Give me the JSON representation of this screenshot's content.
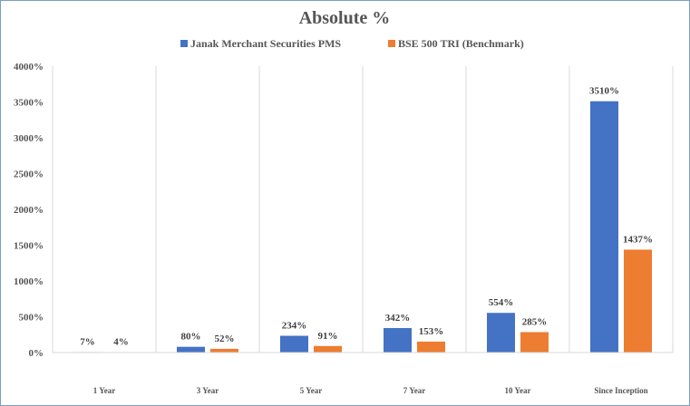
{
  "chart_data": {
    "type": "bar",
    "title": "Absolute %",
    "categories": [
      "1 Year",
      "3 Year",
      "5 Year",
      "7 Year",
      "10 Year",
      "Since Inception"
    ],
    "series": [
      {
        "name": "Janak Merchant Securities PMS",
        "values": [
          7,
          80,
          234,
          342,
          554,
          3510
        ],
        "labels": [
          "7%",
          "80%",
          "234%",
          "342%",
          "554%",
          "3510%"
        ],
        "color": "#4472c4"
      },
      {
        "name": "BSE 500 TRI (Benchmark)",
        "values": [
          4,
          52,
          91,
          153,
          285,
          1437
        ],
        "labels": [
          "4%",
          "52%",
          "91%",
          "153%",
          "285%",
          "1437%"
        ],
        "color": "#ed7d31"
      }
    ],
    "ylim": [
      0,
      4000
    ],
    "yticks": [
      "0%",
      "500%",
      "1000%",
      "1500%",
      "2000%",
      "2500%",
      "3000%",
      "3500%",
      "4000%"
    ],
    "legend_position": "top-center",
    "grid": "vertical category separators"
  }
}
